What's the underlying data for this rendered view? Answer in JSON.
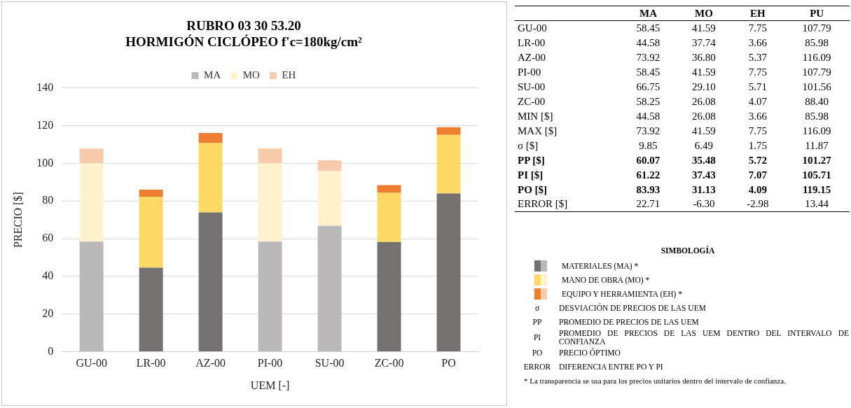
{
  "chart_data": {
    "type": "bar",
    "stacked": true,
    "title": "RUBRO 03 30 53.20\nHORMIGÓN CICLÓPEO f'c=180kg/cm²",
    "xlabel": "UEM [-]",
    "ylabel": "PRECIO [$]",
    "categories": [
      "GU-00",
      "LR-00",
      "AZ-00",
      "PI-00",
      "SU-00",
      "ZC-00",
      "PO"
    ],
    "series": [
      {
        "name": "MA",
        "colors": [
          "#bab8b8",
          "#767171",
          "#767171",
          "#bab8b8",
          "#bab8b8",
          "#767171",
          "#767171"
        ],
        "values": [
          58.45,
          44.58,
          73.92,
          58.45,
          66.75,
          58.25,
          83.93
        ]
      },
      {
        "name": "MO",
        "colors": [
          "#fff2cc",
          "#ffd966",
          "#ffd966",
          "#fff2cc",
          "#fff2cc",
          "#ffd966",
          "#ffd966"
        ],
        "values": [
          41.59,
          37.74,
          36.8,
          41.59,
          29.1,
          26.08,
          31.13
        ]
      },
      {
        "name": "EH",
        "colors": [
          "#f8cbad",
          "#ed7d31",
          "#ed7d31",
          "#f8cbad",
          "#f8cbad",
          "#ed7d31",
          "#ed7d31"
        ],
        "values": [
          7.75,
          3.66,
          5.37,
          7.75,
          5.71,
          4.07,
          4.09
        ]
      }
    ],
    "ylim": [
      0,
      140
    ],
    "yticks": [
      0,
      20,
      40,
      60,
      80,
      100,
      120,
      140
    ],
    "grid": "y",
    "legend": "top",
    "annotations": [
      "MA",
      "MO",
      "EH",
      "PU",
      "GU-00",
      "58.45",
      "41.59",
      "7.75",
      "107.79",
      "LR-00",
      "44.58",
      "37.74",
      "3.66",
      "85.98",
      "AZ-00",
      "73.92",
      "36.80",
      "5.37",
      "116.09",
      "PI-00",
      "58.45",
      "41.59",
      "7.75",
      "107.79",
      "SU-00",
      "66.75",
      "29.10",
      "5.71",
      "101.56",
      "ZC-00",
      "58.25",
      "26.08",
      "4.07",
      "88.40",
      "MIN [$]",
      "44.58",
      "26.08",
      "3.66",
      "85.98",
      "MAX [$]",
      "73.92",
      "41.59",
      "7.75",
      "116.09",
      "σ [$]",
      "9.85",
      "6.49",
      "1.75",
      "11.87",
      "PP [$]",
      "60.07",
      "35.48",
      "5.72",
      "101.27",
      "PI [$]",
      "61.22",
      "37.43",
      "7.07",
      "105.71",
      "PO [$]",
      "83.93",
      "31.13",
      "4.09",
      "119.15",
      "ERROR [$]",
      "22.71",
      "-6.30",
      "-2.98",
      "13.44",
      "SIMBOLOGÍA",
      "MATERIALES (MA) *",
      "MANO DE OBRA (MO) *",
      "EQUIPO Y HERRAMIENTA (EH) *",
      "σ",
      "DESVIACIÓN DE PRECIOS DE LAS UEM",
      "PP",
      "PROMEDIO DE PRECIOS DE LAS UEM",
      "PI",
      "PROMEDIO DE PRECIOS DE LAS UEM DENTRO DEL INTERVALO DE CONFIANZA",
      "PO",
      "PRECIO ÓPTIMO",
      "ERROR",
      "DIFERENCIA ENTRE PO Y PI",
      "* La transparencia se usa para los precios unitarios dentro del intervalo de confianza."
    ]
  }
}
